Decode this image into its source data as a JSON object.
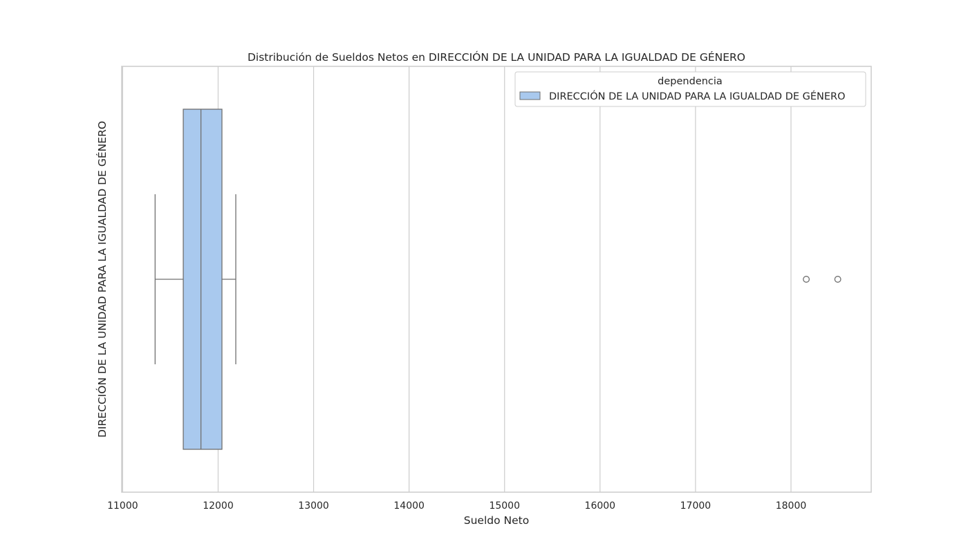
{
  "chart_data": {
    "type": "boxplot",
    "title": "Distribución de Sueldos Netos en DIRECCIÓN DE LA UNIDAD PARA LA IGUALDAD DE GÉNERO",
    "xlabel": "Sueldo Neto",
    "ylabel": "DIRECCIÓN DE LA UNIDAD PARA LA IGUALDAD DE GÉNERO",
    "xlim": [
      10990,
      18840
    ],
    "x_ticks": [
      11000,
      12000,
      13000,
      14000,
      15000,
      16000,
      17000,
      18000
    ],
    "x_tick_labels": [
      "11000",
      "12000",
      "13000",
      "14000",
      "15000",
      "16000",
      "17000",
      "18000"
    ],
    "orientation": "horizontal",
    "grid": "vertical",
    "legend": {
      "title": "dependencia",
      "placement": "top-right",
      "entries": [
        "DIRECCIÓN DE LA UNIDAD PARA LA IGUALDAD DE GÉNERO"
      ]
    },
    "series": [
      {
        "name": "DIRECCIÓN DE LA UNIDAD PARA LA IGUALDAD DE GÉNERO",
        "whisker_low": 11340,
        "q1": 11635,
        "median": 11820,
        "q3": 12040,
        "whisker_high": 12185,
        "outliers": [
          18160,
          18490
        ],
        "color": "#a9c9ee",
        "edge_color": "#6f6f6f"
      }
    ],
    "colors": {
      "grid": "#cccccc",
      "frame": "#cccccc"
    }
  }
}
